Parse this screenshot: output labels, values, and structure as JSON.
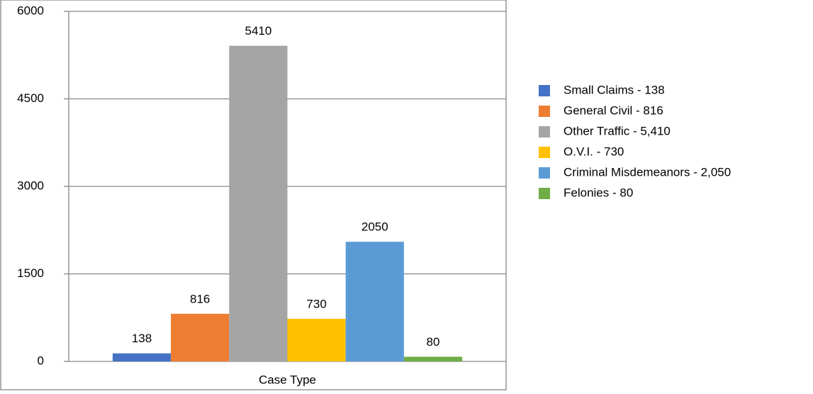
{
  "chart_data": {
    "type": "bar",
    "categories": [
      "Case Type"
    ],
    "series": [
      {
        "name": "Small Claims - 138",
        "color": "#4472c4",
        "values": [
          138
        ]
      },
      {
        "name": "General Civil - 816",
        "color": "#ed7d31",
        "values": [
          816
        ]
      },
      {
        "name": "Other Traffic - 5,410",
        "color": "#a5a5a5",
        "values": [
          5410
        ]
      },
      {
        "name": "O.V.I. - 730",
        "color": "#ffc000",
        "values": [
          730
        ]
      },
      {
        "name": "Criminal Misdemeanors - 2,050",
        "color": "#5b9bd5",
        "values": [
          2050
        ]
      },
      {
        "name": "Felonies - 80",
        "color": "#70ad47",
        "values": [
          80
        ]
      }
    ],
    "ylim": [
      0,
      6000
    ],
    "yticks": [
      0,
      1500,
      3000,
      4500,
      6000
    ],
    "grid": true,
    "legend": "right"
  }
}
